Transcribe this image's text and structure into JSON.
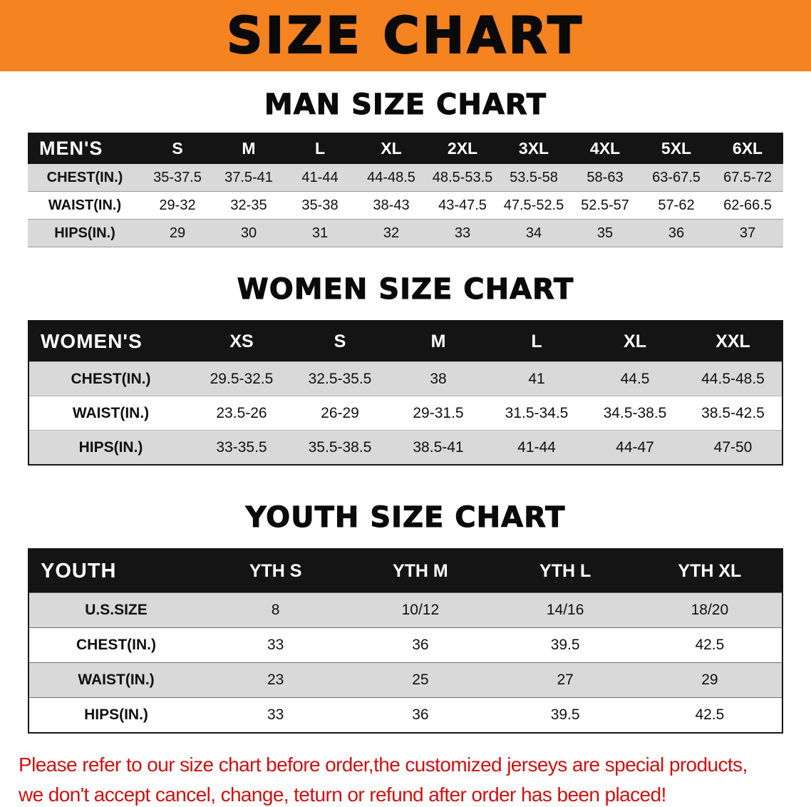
{
  "banner": {
    "title": "SIZE CHART"
  },
  "sections": {
    "men": {
      "title": "MAN SIZE CHART",
      "header_label": "MEN'S",
      "columns": [
        "S",
        "M",
        "L",
        "XL",
        "2XL",
        "3XL",
        "4XL",
        "5XL",
        "6XL"
      ],
      "rows": [
        {
          "label": "CHEST(IN.)",
          "values": [
            "35-37.5",
            "37.5-41",
            "41-44",
            "44-48.5",
            "48.5-53.5",
            "53.5-58",
            "58-63",
            "63-67.5",
            "67.5-72"
          ]
        },
        {
          "label": "WAIST(IN.)",
          "values": [
            "29-32",
            "32-35",
            "35-38",
            "38-43",
            "43-47.5",
            "47.5-52.5",
            "52.5-57",
            "57-62",
            "62-66.5"
          ]
        },
        {
          "label": "HIPS(IN.)",
          "values": [
            "29",
            "30",
            "31",
            "32",
            "33",
            "34",
            "35",
            "36",
            "37"
          ]
        }
      ]
    },
    "women": {
      "title": "WOMEN SIZE CHART",
      "header_label": "WOMEN'S",
      "columns": [
        "XS",
        "S",
        "M",
        "L",
        "XL",
        "XXL"
      ],
      "rows": [
        {
          "label": "CHEST(IN.)",
          "values": [
            "29.5-32.5",
            "32.5-35.5",
            "38",
            "41",
            "44.5",
            "44.5-48.5"
          ]
        },
        {
          "label": "WAIST(IN.)",
          "values": [
            "23.5-26",
            "26-29",
            "29-31.5",
            "31.5-34.5",
            "34.5-38.5",
            "38.5-42.5"
          ]
        },
        {
          "label": "HIPS(IN.)",
          "values": [
            "33-35.5",
            "35.5-38.5",
            "38.5-41",
            "41-44",
            "44-47",
            "47-50"
          ]
        }
      ]
    },
    "youth": {
      "title": "YOUTH SIZE CHART",
      "header_label": "YOUTH",
      "columns": [
        "YTH S",
        "YTH M",
        "YTH L",
        "YTH XL"
      ],
      "rows": [
        {
          "label": "U.S.SIZE",
          "values": [
            "8",
            "10/12",
            "14/16",
            "18/20"
          ]
        },
        {
          "label": "CHEST(IN.)",
          "values": [
            "33",
            "36",
            "39.5",
            "42.5"
          ]
        },
        {
          "label": "WAIST(IN.)",
          "values": [
            "23",
            "25",
            "27",
            "29"
          ]
        },
        {
          "label": "HIPS(IN.)",
          "values": [
            "33",
            "36",
            "39.5",
            "42.5"
          ]
        }
      ]
    }
  },
  "footer": {
    "line1": "Please refer to our size chart before order,the customized jerseys are special products,",
    "line2": "we don't accept cancel, change, teturn or refund after order has been placed!"
  },
  "colors": {
    "banner_orange": "#F5831F",
    "header_black": "#141414",
    "row_gray": "#D9D9D9",
    "footer_red": "#CF1110"
  }
}
